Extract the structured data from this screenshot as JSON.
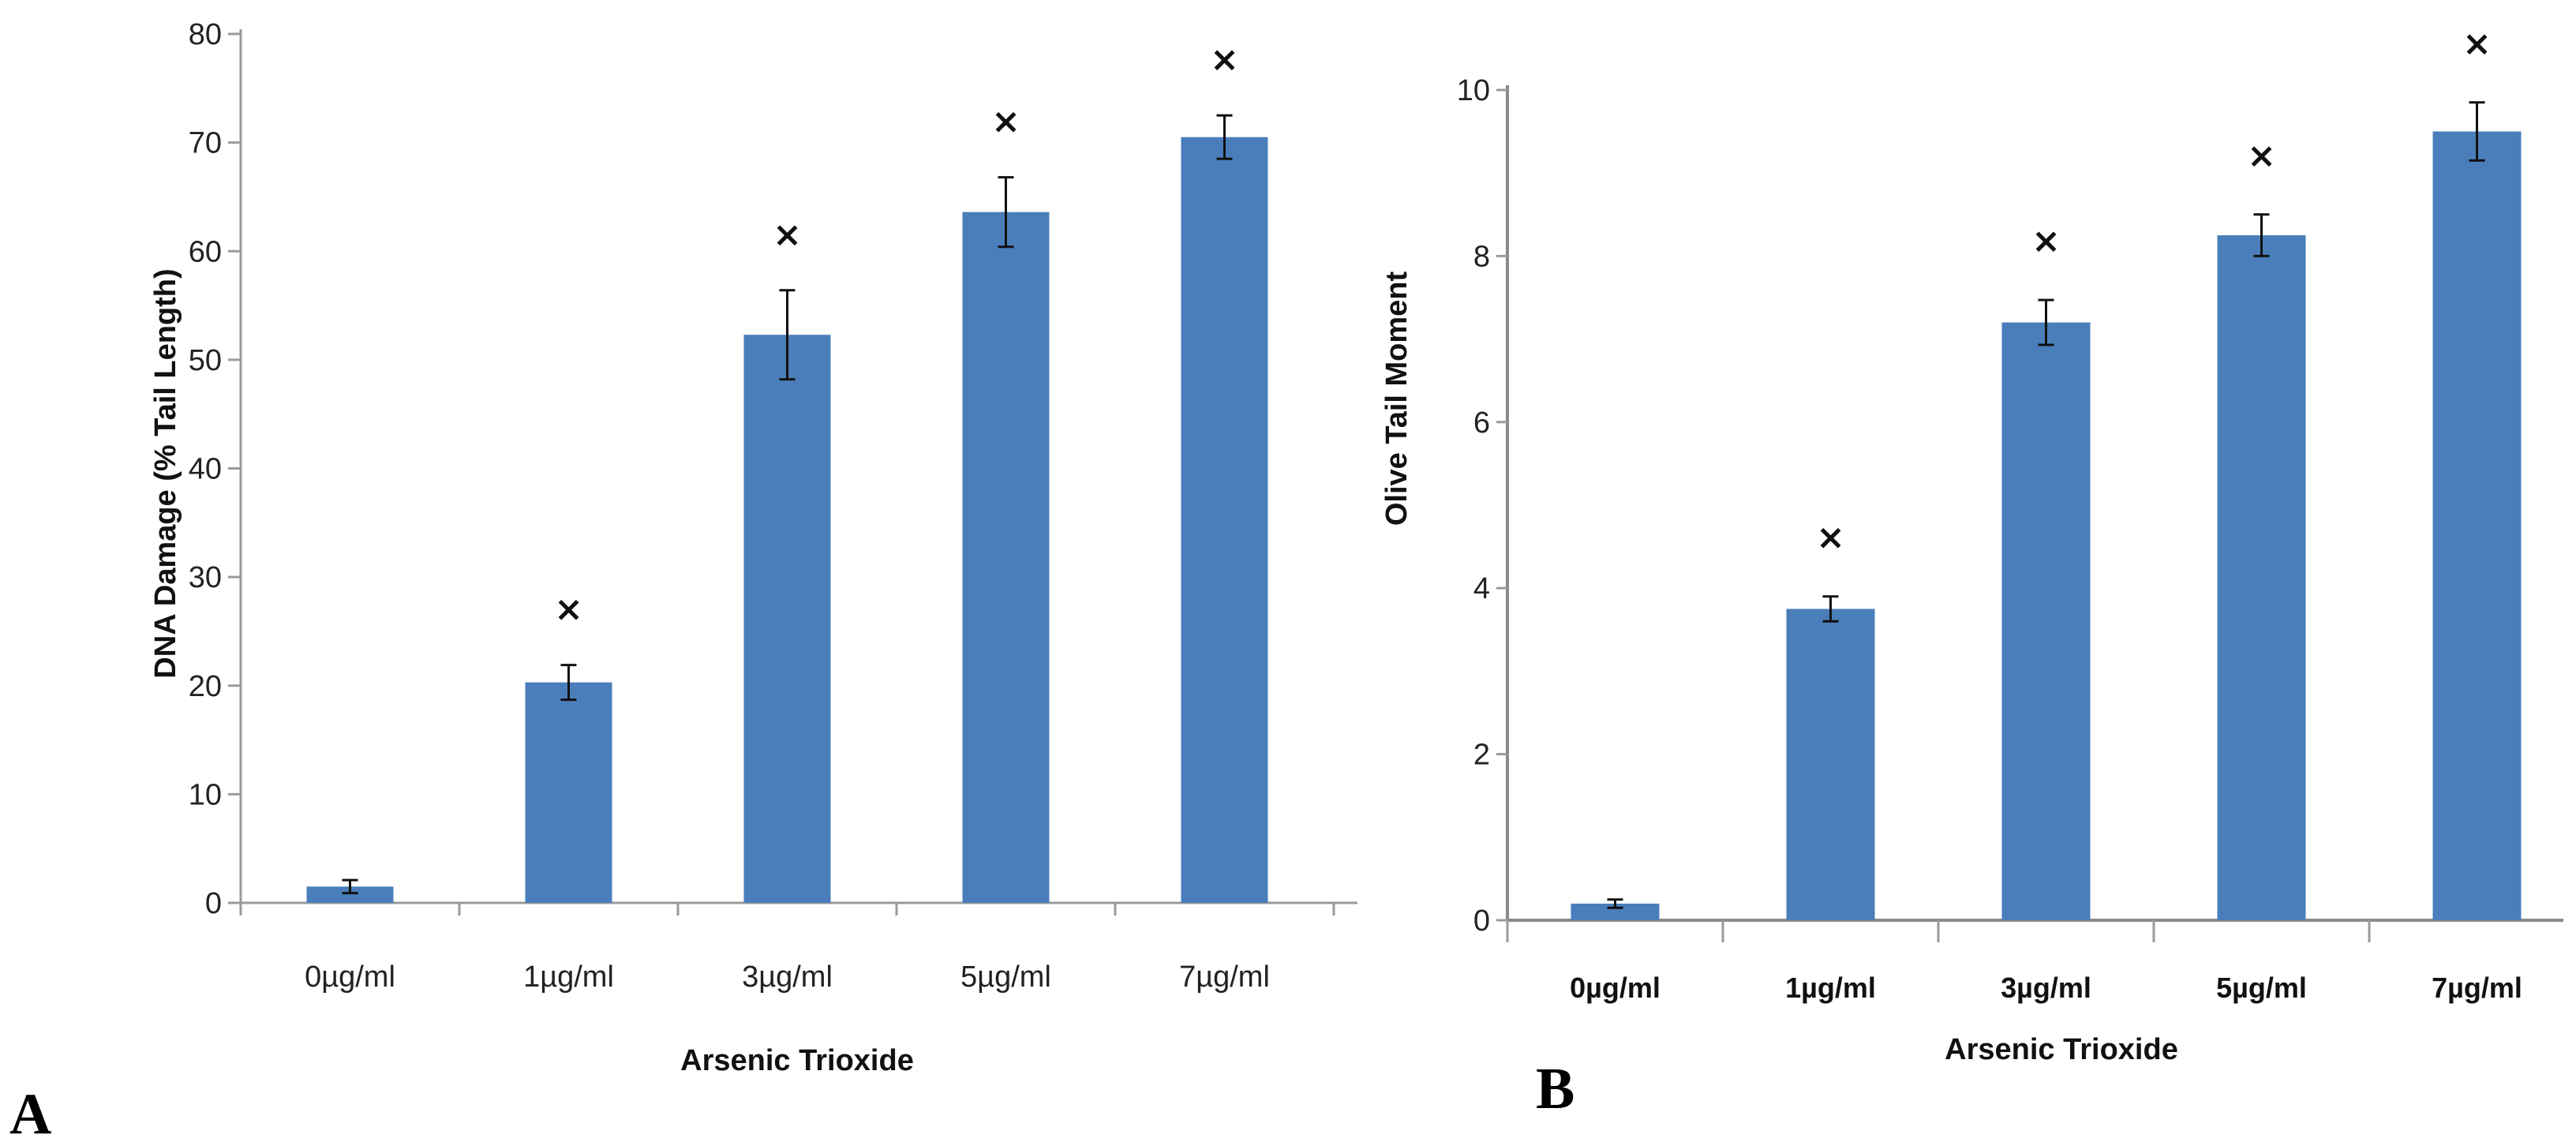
{
  "chart_data": [
    {
      "type": "bar",
      "panel_label": "A",
      "xlabel": "Arsenic Trioxide",
      "ylabel": "DNA Damage (% Tail Length)",
      "ylim": [
        0,
        80
      ],
      "yticks": [
        0,
        10,
        20,
        30,
        40,
        50,
        60,
        70,
        80
      ],
      "categories": [
        "0µg/ml",
        "1µg/ml",
        "3µg/ml",
        "5µg/ml",
        "7µg/ml"
      ],
      "values": [
        1.5,
        20.3,
        52.3,
        63.6,
        70.5
      ],
      "errors": [
        0.6,
        1.6,
        4.1,
        3.2,
        2.0
      ],
      "significance": [
        "",
        "×",
        "×",
        "×",
        "×"
      ],
      "color": "#4a7ebb",
      "grid": false
    },
    {
      "type": "bar",
      "panel_label": "B",
      "xlabel": "Arsenic Trioxide",
      "ylabel": "Olive Tail Moment",
      "ylim": [
        0,
        10
      ],
      "yticks": [
        0,
        2,
        4,
        6,
        8,
        10
      ],
      "categories": [
        "0µg/ml",
        "1µg/ml",
        "3µg/ml",
        "5µg/ml",
        "7µg/ml"
      ],
      "values": [
        0.2,
        3.75,
        7.2,
        8.25,
        9.5
      ],
      "errors": [
        0.05,
        0.15,
        0.27,
        0.25,
        0.35
      ],
      "significance": [
        "",
        "×",
        "×",
        "×",
        "×"
      ],
      "color": "#4a7ebb",
      "grid": false
    }
  ]
}
